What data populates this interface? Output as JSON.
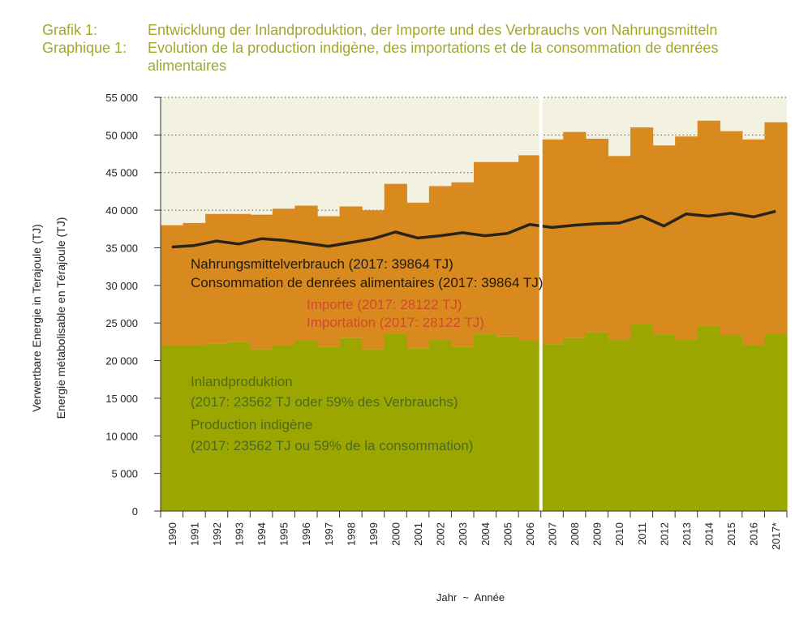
{
  "header": {
    "line1_label": "Grafik 1:",
    "line1_text": "Entwicklung der Inlandproduktion, der Importe und des Verbrauchs von Nahrungsmitteln",
    "line2_label": "Graphique 1:",
    "line2_text": "Evolution de la production indigène, des importations et de la consommation de denrées alimentaires"
  },
  "chart_data": {
    "type": "area",
    "title": "Entwicklung der Inlandproduktion, der Importe und des Verbrauchs von Nahrungsmitteln",
    "ylabel_de": "Verwertbare Energie in Terajoule (TJ)",
    "ylabel_fr": "Energie métabolisable en Térajoule (TJ)",
    "xlabel": "Jahr  ~  Année",
    "ylim": [
      0,
      55000
    ],
    "yticks": [
      0,
      5000,
      10000,
      15000,
      20000,
      25000,
      30000,
      35000,
      40000,
      45000,
      50000,
      55000
    ],
    "ytick_labels": [
      "0",
      "5 000",
      "10 000",
      "15 000",
      "20 000",
      "25 000",
      "30 000",
      "35 000",
      "40 000",
      "45 000",
      "50 000",
      "55 000"
    ],
    "grid": "horizontal dotted",
    "categories": [
      "1990",
      "1991",
      "1992",
      "1993",
      "1994",
      "1995",
      "1996",
      "1997",
      "1998",
      "1999",
      "2000",
      "2001",
      "2002",
      "2003",
      "2004",
      "2005",
      "2006",
      "2007",
      "2008",
      "2009",
      "2010",
      "2011",
      "2012",
      "2013",
      "2014",
      "2015",
      "2016",
      "2017*"
    ],
    "series": [
      {
        "name": "Inlandproduktion / Production indigène",
        "kind": "stacked-area",
        "color": "#9ca600",
        "values": [
          22000,
          22000,
          22300,
          22500,
          21500,
          22000,
          22700,
          21800,
          23000,
          21500,
          23600,
          21600,
          22800,
          21800,
          23500,
          23200,
          22700,
          22200,
          23000,
          23800,
          22800,
          24800,
          23500,
          22800,
          24600,
          23400,
          22000,
          23562
        ]
      },
      {
        "name": "Importe / Importation",
        "kind": "stacked-area",
        "color": "#d98a1e",
        "values": [
          16000,
          16300,
          17200,
          17000,
          17900,
          18200,
          17900,
          17400,
          17500,
          18500,
          19900,
          19400,
          20400,
          21900,
          22900,
          23200,
          24600,
          27200,
          27400,
          25700,
          24400,
          26200,
          25100,
          27000,
          27300,
          27100,
          27400,
          28122
        ]
      },
      {
        "name": "Nahrungsmittelverbrauch / Consommation de denrées alimentaires",
        "kind": "line",
        "color": "#2a2418",
        "values": [
          35100,
          35300,
          35900,
          35500,
          36200,
          36000,
          35600,
          35200,
          35700,
          36200,
          37100,
          36300,
          36600,
          37000,
          36600,
          36900,
          38100,
          37700,
          38000,
          38200,
          38300,
          39200,
          37900,
          39500,
          39200,
          39600,
          39100,
          39864
        ]
      }
    ],
    "annotations": {
      "consumption_de": "Nahrungsmittelverbrauch (2017: 39864 TJ)",
      "consumption_fr": "Consommation de denrées alimentaires (2017: 39864 TJ)",
      "imports_de": "Importe (2017: 28122 TJ)",
      "imports_fr": "Importation (2017: 28122 TJ)",
      "production_de": "Inlandproduktion",
      "production_de_detail": "(2017: 23562 TJ oder 59% des Verbrauchs)",
      "production_fr": "Production indigène",
      "production_fr_detail": "(2017: 23562 TJ ou 59% de la consommation)"
    },
    "colors": {
      "plot_background": "#f3f1df",
      "production": "#9ca600",
      "imports": "#d98a1e",
      "consumption_line": "#2a2418",
      "imports_text": "#d24a2c",
      "production_text": "#4f6b1c",
      "title_text": "#a3a72b"
    }
  }
}
